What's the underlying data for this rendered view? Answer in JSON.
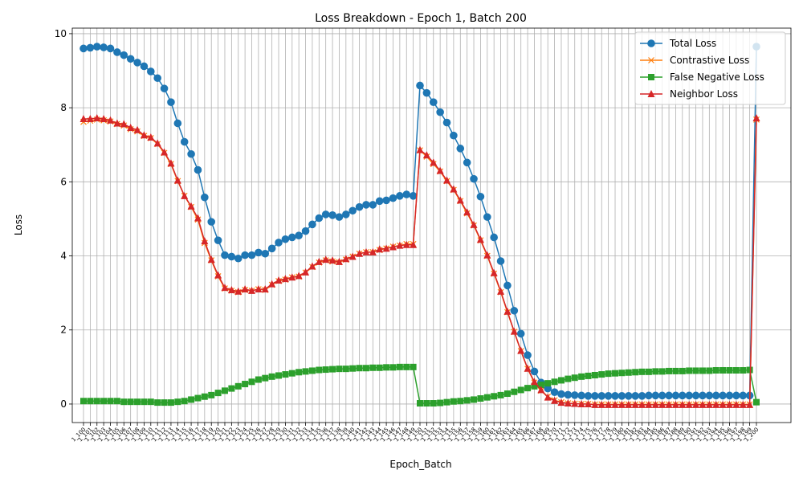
{
  "chart_data": {
    "type": "line",
    "title": "Loss Breakdown - Epoch 1, Batch 200",
    "xlabel": "Epoch_Batch",
    "ylabel": "Loss",
    "ylim": [
      -0.5,
      10.15
    ],
    "yticks": [
      0,
      2,
      4,
      6,
      8,
      10
    ],
    "grid": true,
    "legend_position": "top-right",
    "x_tick_prefix": "1_",
    "x": [
      100,
      101,
      102,
      103,
      104,
      105,
      106,
      107,
      108,
      109,
      110,
      111,
      112,
      113,
      114,
      115,
      116,
      117,
      118,
      119,
      120,
      121,
      122,
      123,
      124,
      125,
      126,
      127,
      128,
      129,
      130,
      131,
      132,
      133,
      134,
      135,
      136,
      137,
      138,
      139,
      140,
      141,
      142,
      143,
      144,
      145,
      146,
      147,
      148,
      149,
      150,
      151,
      152,
      153,
      154,
      155,
      156,
      157,
      158,
      159,
      160,
      161,
      162,
      163,
      164,
      165,
      166,
      167,
      168,
      169,
      170,
      171,
      172,
      173,
      174,
      175,
      176,
      177,
      178,
      179,
      180,
      181,
      182,
      183,
      184,
      185,
      186,
      187,
      188,
      189,
      190,
      191,
      192,
      193,
      194,
      195,
      196,
      197,
      198,
      199,
      200
    ],
    "series": [
      {
        "name": "Total Loss",
        "color": "#1f77b4",
        "marker": "circle",
        "values": [
          9.6,
          9.62,
          9.65,
          9.63,
          9.6,
          9.5,
          9.42,
          9.32,
          9.22,
          9.12,
          8.98,
          8.8,
          8.52,
          8.15,
          7.58,
          7.08,
          6.75,
          6.32,
          5.58,
          4.92,
          4.42,
          4.02,
          3.98,
          3.93,
          4.02,
          4.02,
          4.09,
          4.06,
          4.2,
          4.36,
          4.45,
          4.5,
          4.55,
          4.67,
          4.85,
          5.02,
          5.12,
          5.1,
          5.05,
          5.12,
          5.22,
          5.32,
          5.38,
          5.38,
          5.48,
          5.5,
          5.56,
          5.62,
          5.66,
          5.62,
          8.6,
          8.4,
          8.15,
          7.88,
          7.6,
          7.25,
          6.9,
          6.52,
          6.08,
          5.6,
          5.05,
          4.5,
          3.86,
          3.2,
          2.52,
          1.9,
          1.32,
          0.88,
          0.58,
          0.42,
          0.32,
          0.27,
          0.25,
          0.24,
          0.23,
          0.22,
          0.22,
          0.22,
          0.22,
          0.22,
          0.22,
          0.22,
          0.22,
          0.22,
          0.23,
          0.23,
          0.23,
          0.23,
          0.23,
          0.23,
          0.23,
          0.23,
          0.23,
          0.23,
          0.23,
          0.23,
          0.23,
          0.23,
          0.23,
          0.23,
          9.65
        ]
      },
      {
        "name": "Contrastive Loss",
        "color": "#ff7f0e",
        "marker": "x",
        "values": [
          7.62,
          7.65,
          7.68,
          7.66,
          7.63,
          7.56,
          7.52,
          7.42,
          7.36,
          7.24,
          7.18,
          7.02,
          6.78,
          6.48,
          6.02,
          5.62,
          5.32,
          4.98,
          4.35,
          3.88,
          3.45,
          3.12,
          3.06,
          3.02,
          3.08,
          3.06,
          3.1,
          3.08,
          3.22,
          3.32,
          3.36,
          3.42,
          3.44,
          3.55,
          3.7,
          3.82,
          3.88,
          3.85,
          3.83,
          3.9,
          3.98,
          4.06,
          4.1,
          4.1,
          4.16,
          4.2,
          4.25,
          4.28,
          4.32,
          4.32,
          6.85,
          6.68,
          6.48,
          6.28,
          6.02,
          5.78,
          5.48,
          5.15,
          4.82,
          4.42,
          4.0,
          3.52,
          3.02,
          2.48,
          1.95,
          1.43,
          0.95,
          0.58,
          0.36,
          0.2,
          0.1,
          0.05,
          0.02,
          0.01,
          0.0,
          0.0,
          -0.01,
          -0.01,
          -0.01,
          -0.01,
          -0.01,
          -0.01,
          -0.01,
          -0.01,
          -0.01,
          -0.01,
          -0.01,
          -0.01,
          -0.01,
          -0.01,
          -0.01,
          -0.01,
          -0.01,
          -0.01,
          -0.01,
          -0.01,
          -0.01,
          -0.01,
          -0.01,
          -0.01,
          7.68
        ]
      },
      {
        "name": "False Negative Loss",
        "color": "#2ca02c",
        "marker": "square",
        "values": [
          0.08,
          0.08,
          0.08,
          0.08,
          0.08,
          0.08,
          0.06,
          0.06,
          0.06,
          0.06,
          0.06,
          0.04,
          0.04,
          0.04,
          0.06,
          0.08,
          0.12,
          0.16,
          0.2,
          0.24,
          0.3,
          0.36,
          0.42,
          0.48,
          0.54,
          0.6,
          0.66,
          0.7,
          0.74,
          0.77,
          0.8,
          0.83,
          0.86,
          0.88,
          0.9,
          0.92,
          0.93,
          0.94,
          0.95,
          0.95,
          0.96,
          0.97,
          0.97,
          0.98,
          0.98,
          0.99,
          0.99,
          1.0,
          1.0,
          1.0,
          0.02,
          0.02,
          0.02,
          0.03,
          0.05,
          0.07,
          0.08,
          0.1,
          0.12,
          0.15,
          0.18,
          0.21,
          0.24,
          0.28,
          0.33,
          0.38,
          0.43,
          0.48,
          0.52,
          0.56,
          0.6,
          0.64,
          0.68,
          0.71,
          0.74,
          0.76,
          0.78,
          0.8,
          0.82,
          0.83,
          0.84,
          0.85,
          0.86,
          0.87,
          0.87,
          0.88,
          0.88,
          0.89,
          0.89,
          0.89,
          0.9,
          0.9,
          0.9,
          0.9,
          0.91,
          0.91,
          0.91,
          0.91,
          0.91,
          0.92,
          0.05
        ]
      },
      {
        "name": "Neighbor Loss",
        "color": "#d62728",
        "marker": "triangle",
        "values": [
          7.7,
          7.7,
          7.72,
          7.7,
          7.66,
          7.58,
          7.56,
          7.46,
          7.4,
          7.26,
          7.2,
          7.04,
          6.8,
          6.5,
          6.04,
          5.62,
          5.34,
          5.02,
          4.4,
          3.9,
          3.48,
          3.14,
          3.08,
          3.04,
          3.1,
          3.06,
          3.1,
          3.1,
          3.24,
          3.34,
          3.38,
          3.42,
          3.46,
          3.56,
          3.72,
          3.84,
          3.9,
          3.88,
          3.84,
          3.92,
          3.98,
          4.06,
          4.1,
          4.1,
          4.18,
          4.2,
          4.24,
          4.28,
          4.3,
          4.3,
          6.86,
          6.72,
          6.52,
          6.3,
          6.04,
          5.8,
          5.5,
          5.18,
          4.84,
          4.44,
          4.02,
          3.54,
          3.04,
          2.5,
          1.96,
          1.44,
          0.96,
          0.6,
          0.38,
          0.18,
          0.09,
          0.04,
          0.02,
          0.01,
          0.0,
          0.0,
          -0.02,
          -0.02,
          -0.02,
          -0.02,
          -0.02,
          -0.02,
          -0.02,
          -0.02,
          -0.02,
          -0.02,
          -0.02,
          -0.02,
          -0.02,
          -0.02,
          -0.02,
          -0.02,
          -0.02,
          -0.02,
          -0.02,
          -0.02,
          -0.02,
          -0.02,
          -0.02,
          -0.02,
          7.72
        ]
      }
    ]
  }
}
